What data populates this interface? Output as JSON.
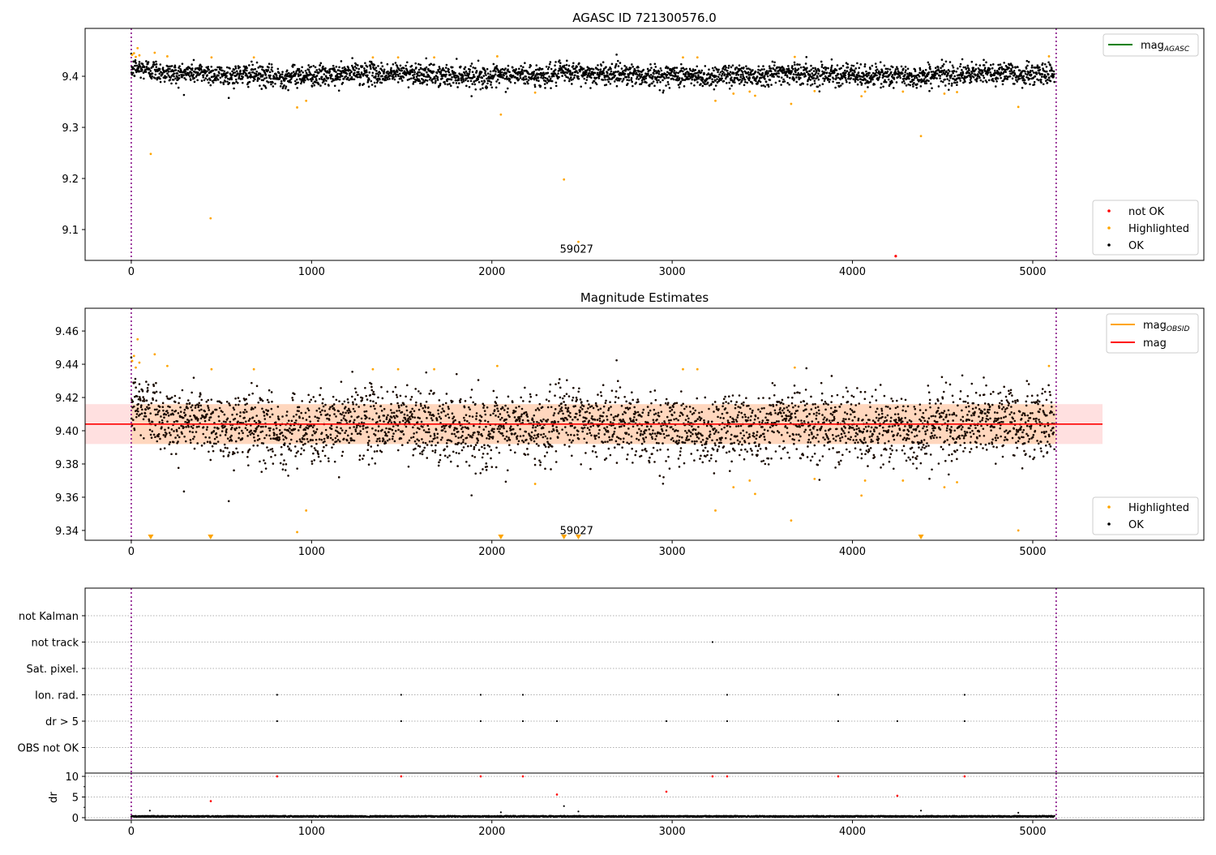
{
  "chart_data": [
    {
      "type": "scatter",
      "title": "AGASC ID 721300576.0",
      "xlim": [
        -256,
        5949
      ],
      "ylim": [
        9.0397,
        9.4937
      ],
      "xticks": [
        0,
        1000,
        2000,
        3000,
        4000,
        5000
      ],
      "yticks": [
        9.1,
        9.2,
        9.3,
        9.4
      ],
      "ytick_labels": [
        "9.1",
        "9.2",
        "9.3",
        "9.4"
      ],
      "vlines": [
        0,
        5130
      ],
      "annotation": {
        "text": "59027",
        "x": 2470,
        "y": 9.055
      },
      "legend_top": {
        "location": "top-right",
        "entries": [
          {
            "label": "mag",
            "sub": "AGASC",
            "color": "#008000"
          }
        ]
      },
      "legend_bottom": {
        "location": "bottom-right",
        "entries": [
          {
            "label": "not OK",
            "color": "#ff0000"
          },
          {
            "label": "Highlighted",
            "color": "#ffa500"
          },
          {
            "label": "OK",
            "color": "#000000"
          }
        ]
      },
      "not_ok": [
        [
          4240,
          9.048
        ]
      ]
    },
    {
      "type": "scatter",
      "title": "Magnitude Estimates",
      "xlim": [
        -256,
        5949
      ],
      "ylim": [
        9.3341,
        9.4737
      ],
      "xticks": [
        0,
        1000,
        2000,
        3000,
        4000,
        5000
      ],
      "yticks": [
        9.34,
        9.36,
        9.38,
        9.4,
        9.42,
        9.44,
        9.46
      ],
      "ytick_labels": [
        "9.34",
        "9.36",
        "9.38",
        "9.40",
        "9.42",
        "9.44",
        "9.46"
      ],
      "vlines": [
        0,
        5130
      ],
      "mag": 9.404,
      "mag_band": [
        9.392,
        9.416
      ],
      "mag_range_x": [
        0,
        5387
      ],
      "annotation": {
        "text": "59027",
        "x": 2470,
        "y": 9.3358
      },
      "legend_top": {
        "location": "top-right",
        "entries": [
          {
            "label": "mag",
            "sub": "OBSID",
            "color": "#ffa500"
          },
          {
            "label": "mag",
            "sub": "",
            "color": "#ff0000"
          }
        ]
      },
      "legend_bottom": {
        "location": "bottom-right",
        "entries": [
          {
            "label": "Highlighted",
            "color": "#ffa500"
          },
          {
            "label": "OK",
            "color": "#000000"
          }
        ]
      }
    },
    {
      "type": "scatter",
      "title": "",
      "xlim": [
        -256,
        5949
      ],
      "flag_categories": [
        "not Kalman",
        "not track",
        "Sat. pixel.",
        "Ion. rad.",
        "dr > 5",
        "OBS not OK"
      ],
      "flags": {
        "not track": [
          3224
        ],
        "Ion. rad.": [
          809,
          1497,
          1938,
          2172,
          3305,
          3921,
          4622
        ],
        "dr > 5": [
          809,
          1497,
          1938,
          2172,
          2361,
          2968,
          3305,
          3921,
          4249,
          4622
        ]
      },
      "dr_ylabel": "dr",
      "dr_ylim": [
        -0.6,
        10.8
      ],
      "dr_yticks": [
        0,
        5,
        10
      ],
      "dr_red": [
        [
          441,
          4.0
        ],
        [
          809,
          10
        ],
        [
          1497,
          10
        ],
        [
          1938,
          10
        ],
        [
          2172,
          10
        ],
        [
          2361,
          5.6
        ],
        [
          2968,
          6.3
        ],
        [
          3224,
          10
        ],
        [
          3305,
          10
        ],
        [
          3921,
          10
        ],
        [
          4249,
          5.3
        ],
        [
          4622,
          10
        ]
      ],
      "dr_black_outliers": [
        [
          103,
          1.7
        ],
        [
          2050,
          1.3
        ],
        [
          2400,
          2.8
        ],
        [
          2480,
          1.5
        ],
        [
          4380,
          1.7
        ],
        [
          4920,
          1.2
        ]
      ],
      "dr_baseline": {
        "mean": 0.3,
        "spread": 0.15
      },
      "xticks": [
        0,
        1000,
        2000,
        3000,
        4000,
        5000
      ],
      "vlines": [
        0,
        5130
      ]
    }
  ],
  "ok_series": {
    "n": 3400,
    "x_range": [
      0,
      5120
    ],
    "mean": 9.403,
    "std": 0.0105,
    "early_offset": 0.012,
    "early_span": 250
  },
  "highlighted": [
    [
      5,
      9.442
    ],
    [
      15,
      9.445
    ],
    [
      25,
      9.438
    ],
    [
      35,
      9.455
    ],
    [
      45,
      9.441
    ],
    [
      108,
      9.248
    ],
    [
      130,
      9.446
    ],
    [
      200,
      9.439
    ],
    [
      440,
      9.122
    ],
    [
      445,
      9.437
    ],
    [
      680,
      9.437
    ],
    [
      920,
      9.339
    ],
    [
      970,
      9.352
    ],
    [
      1340,
      9.437
    ],
    [
      1480,
      9.437
    ],
    [
      1680,
      9.437
    ],
    [
      2030,
      9.439
    ],
    [
      2050,
      9.325
    ],
    [
      2240,
      9.368
    ],
    [
      2400,
      9.198
    ],
    [
      2480,
      9.076
    ],
    [
      3060,
      9.437
    ],
    [
      3140,
      9.437
    ],
    [
      3240,
      9.352
    ],
    [
      3340,
      9.366
    ],
    [
      3430,
      9.37
    ],
    [
      3460,
      9.362
    ],
    [
      3660,
      9.346
    ],
    [
      3680,
      9.438
    ],
    [
      3790,
      9.371
    ],
    [
      4050,
      9.361
    ],
    [
      4070,
      9.37
    ],
    [
      4280,
      9.37
    ],
    [
      4380,
      9.283
    ],
    [
      4510,
      9.366
    ],
    [
      4580,
      9.369
    ],
    [
      4920,
      9.34
    ],
    [
      5090,
      9.439
    ]
  ]
}
